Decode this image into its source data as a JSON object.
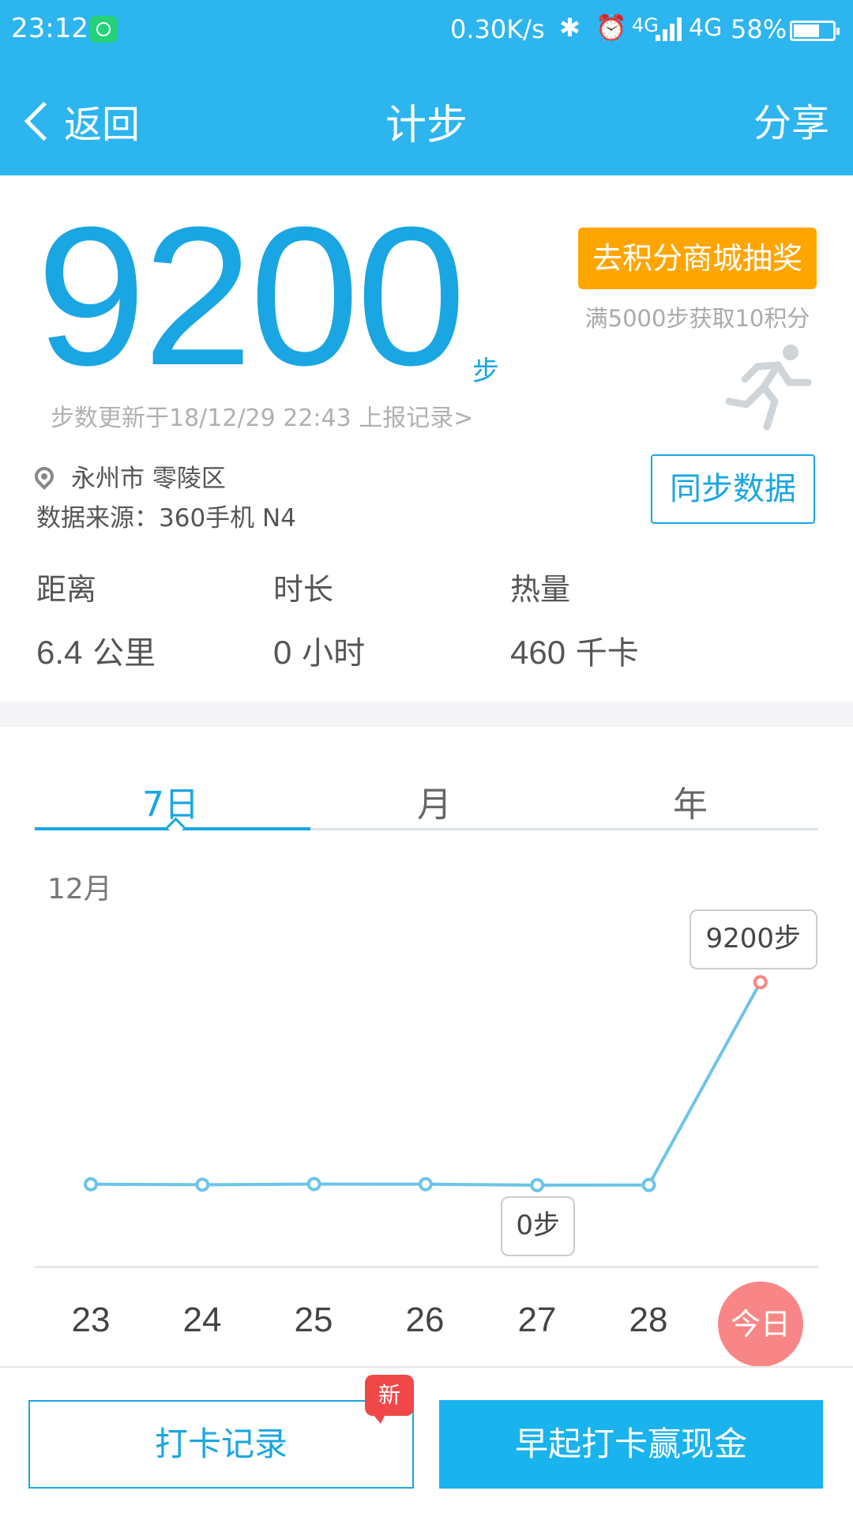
{
  "status_bar": {
    "time": "23:12",
    "speed": "0.30K/s",
    "signal_small": "4G",
    "network": "4G",
    "battery": "58%"
  },
  "nav": {
    "back_label": "返回",
    "title": "计步",
    "share_label": "分享"
  },
  "summary": {
    "steps": "9200",
    "steps_unit": "步",
    "updated_text": "步数更新于18/12/29 22:43 上报记录>",
    "mall_button": "去积分商城抽奖",
    "mall_hint": "满5000步获取10积分",
    "location": "永州市 零陵区",
    "source": "数据来源：360手机 N4",
    "sync_button": "同步数据"
  },
  "stats": [
    {
      "label": "距离",
      "value": "6.4",
      "unit": "公里"
    },
    {
      "label": "时长",
      "value": "0",
      "unit": "小时"
    },
    {
      "label": "热量",
      "value": "460",
      "unit": "千卡"
    }
  ],
  "tabs": [
    {
      "label": "7日",
      "active": true
    },
    {
      "label": "月",
      "active": false
    },
    {
      "label": "年",
      "active": false
    }
  ],
  "chart_data": {
    "type": "line",
    "month_label": "12月",
    "categories": [
      "23",
      "24",
      "25",
      "26",
      "27",
      "28",
      "今日"
    ],
    "values": [
      40,
      20,
      50,
      45,
      0,
      10,
      9200
    ],
    "callouts": {
      "max": "9200步",
      "min": "0步"
    },
    "ylim": [
      0,
      9600
    ]
  },
  "bottom": {
    "checkin_record": "打卡记录",
    "new_badge": "新",
    "early_checkin": "早起打卡赢现金"
  },
  "colors": {
    "primary": "#2cb5ef",
    "steps_blue": "#1aa6e2",
    "orange": "#ffa500",
    "today_red": "#f98686",
    "badge_red": "#f04848",
    "line": "#6cc5e8"
  }
}
